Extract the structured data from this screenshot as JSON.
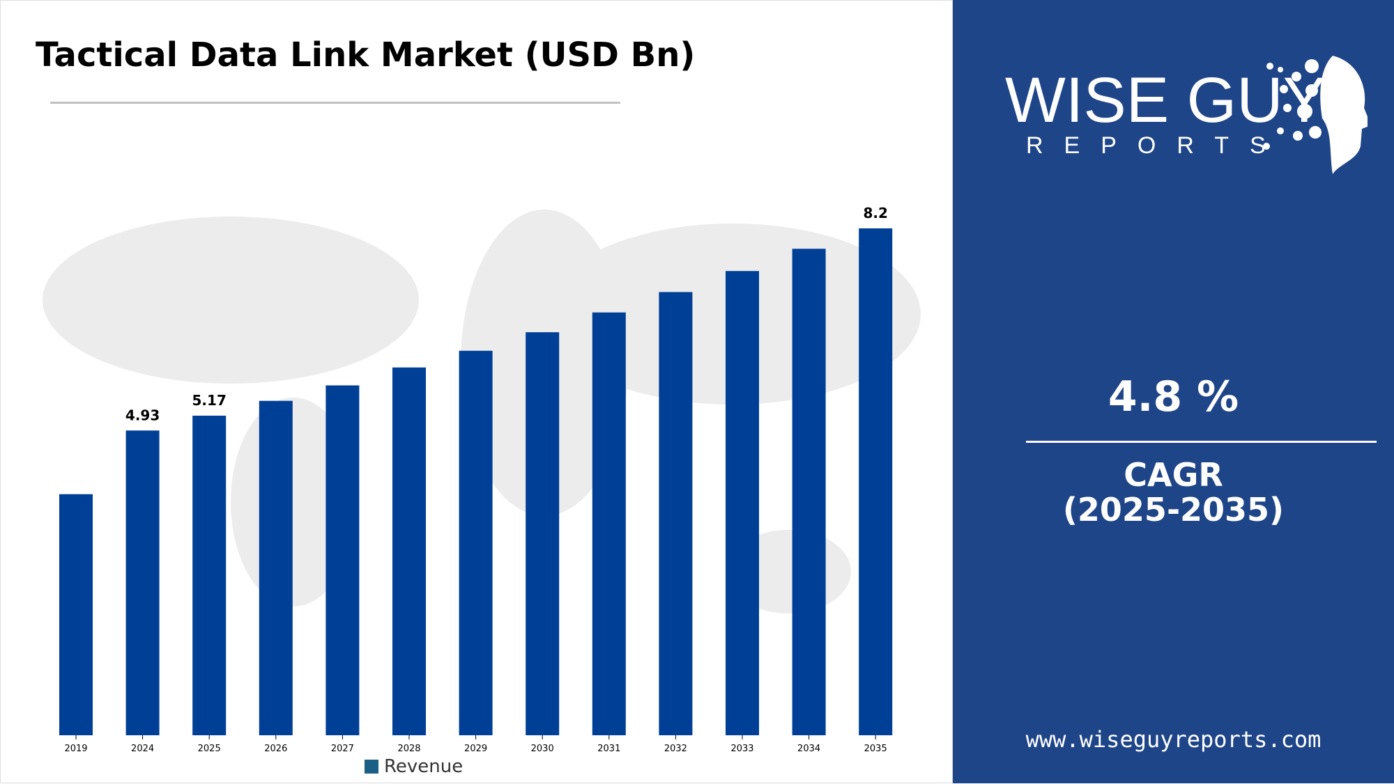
{
  "title": "Tactical Data Link Market (USD Bn)",
  "chart_data": {
    "type": "bar",
    "title": "Tactical Data Link Market (USD Bn)",
    "categories": [
      "2019",
      "2024",
      "2025",
      "2026",
      "2027",
      "2028",
      "2029",
      "2030",
      "2031",
      "2032",
      "2033",
      "2034",
      "2035"
    ],
    "series": [
      {
        "name": "Revenue",
        "values": [
          3.9,
          4.93,
          5.17,
          5.41,
          5.66,
          5.95,
          6.22,
          6.52,
          6.84,
          7.17,
          7.51,
          7.87,
          8.2
        ]
      }
    ],
    "data_labels": {
      "2024": "4.93",
      "2025": "5.17",
      "2035": "8.2"
    },
    "ylim": [
      0,
      8.2
    ],
    "grid": false,
    "legend": "bottom-center",
    "bar_color": "#003f96"
  },
  "legend": {
    "label": "Revenue",
    "color": "#1a5f86"
  },
  "side": {
    "brand_top": "WISE GUY",
    "brand_bottom": "REPORTS",
    "cagr_value": "4.8 %",
    "cagr_label": "CAGR",
    "cagr_period": "(2025-2035)",
    "url": "www.wiseguyreports.com",
    "bg_color": "#1f4589"
  }
}
